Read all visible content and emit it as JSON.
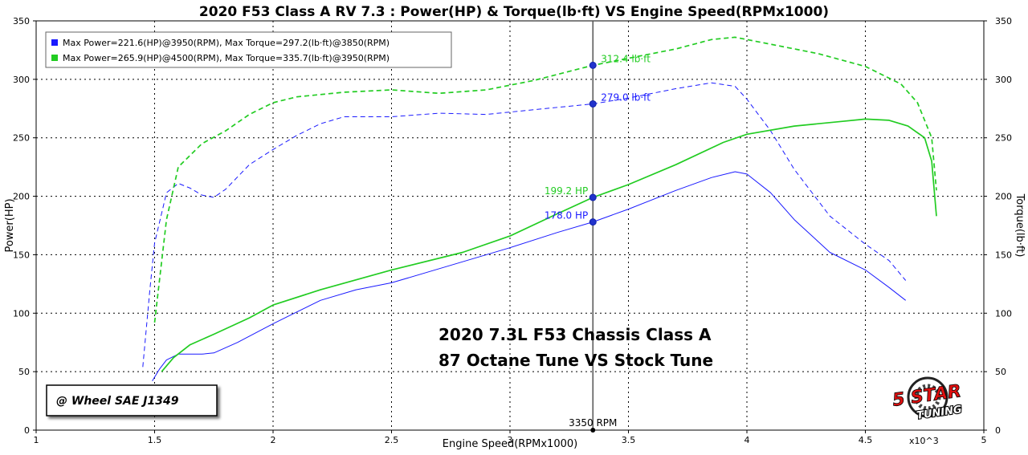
{
  "chart_data": {
    "type": "line",
    "title": "2020 F53 Class A RV 7.3 : Power(HP) & Torque(lb·ft) VS Engine Speed(RPMx1000)",
    "xlabel": "Engine Speed(RPMx1000)",
    "ylabel_left": "Power(HP)",
    "ylabel_right": "Torque(lb·ft)",
    "x_multiplier_label": "x10^3",
    "xlim": [
      1,
      5
    ],
    "ylim": [
      0,
      350
    ],
    "x_ticks": [
      "1",
      "1.5",
      "2",
      "2.5",
      "3",
      "3.5",
      "4",
      "4.5",
      "5"
    ],
    "y_ticks": [
      "0",
      "50",
      "100",
      "150",
      "200",
      "250",
      "300",
      "350"
    ],
    "grid": true,
    "legend_position": "top-left",
    "legend": [
      {
        "text": "Max Power=221.6(HP)@3950(RPM), Max Torque=297.2(lb·ft)@3850(RPM)",
        "color": "#1a1aff"
      },
      {
        "text": "Max Power=265.9(HP)@4500(RPM), Max Torque=335.7(lb·ft)@3950(RPM)",
        "color": "#22cc22"
      }
    ],
    "series": [
      {
        "metric": "power",
        "color": "#1a1aff",
        "style": "solid",
        "width": 1,
        "x": [
          1.49,
          1.52,
          1.55,
          1.6,
          1.7,
          1.75,
          1.85,
          2.0,
          2.1,
          2.2,
          2.35,
          2.5,
          2.65,
          2.8,
          3.0,
          3.2,
          3.35,
          3.5,
          3.7,
          3.85,
          3.95,
          4.0,
          4.1,
          4.2,
          4.35,
          4.5,
          4.6,
          4.67
        ],
        "y": [
          42,
          52,
          60,
          65,
          65,
          66,
          75,
          91,
          101,
          111,
          120,
          126,
          135,
          144,
          156,
          169,
          178,
          189,
          205,
          216,
          221,
          219,
          203,
          180,
          152,
          137,
          122,
          111
        ]
      },
      {
        "metric": "torque",
        "color": "#1a1aff",
        "style": "dashed",
        "width": 1,
        "x": [
          1.45,
          1.48,
          1.5,
          1.55,
          1.6,
          1.65,
          1.7,
          1.75,
          1.8,
          1.9,
          2.0,
          2.1,
          2.2,
          2.3,
          2.5,
          2.7,
          2.9,
          3.1,
          3.35,
          3.5,
          3.7,
          3.85,
          3.95,
          4.0,
          4.1,
          4.2,
          4.35,
          4.5,
          4.6,
          4.67
        ],
        "y": [
          54,
          120,
          160,
          203,
          211,
          207,
          201,
          199,
          206,
          227,
          240,
          252,
          262,
          268,
          268,
          271,
          270,
          274,
          279,
          284,
          292,
          297,
          294,
          283,
          256,
          223,
          183,
          159,
          145,
          128
        ]
      },
      {
        "metric": "power",
        "color": "#22cc22",
        "style": "solid",
        "width": 1.7,
        "x": [
          1.53,
          1.58,
          1.65,
          1.75,
          1.9,
          2.0,
          2.2,
          2.5,
          2.8,
          3.0,
          3.2,
          3.35,
          3.5,
          3.7,
          3.9,
          4.0,
          4.2,
          4.4,
          4.5,
          4.6,
          4.68,
          4.75,
          4.78,
          4.8
        ],
        "y": [
          50,
          62,
          73,
          82,
          96,
          107,
          120,
          137,
          152,
          166,
          185,
          199,
          210,
          227,
          246,
          253,
          260,
          264,
          266,
          265,
          260,
          250,
          230,
          183
        ]
      },
      {
        "metric": "torque",
        "color": "#22cc22",
        "style": "dashed",
        "width": 1.7,
        "x": [
          1.5,
          1.55,
          1.6,
          1.7,
          1.8,
          1.9,
          2.0,
          2.1,
          2.3,
          2.5,
          2.7,
          2.9,
          3.1,
          3.35,
          3.5,
          3.7,
          3.85,
          3.95,
          4.1,
          4.3,
          4.5,
          4.65,
          4.72,
          4.78,
          4.8
        ],
        "y": [
          92,
          180,
          225,
          245,
          256,
          270,
          280,
          285,
          289,
          291,
          288,
          291,
          299,
          312,
          318,
          326,
          334,
          336,
          330,
          322,
          311,
          296,
          280,
          250,
          205
        ]
      }
    ],
    "cursor": {
      "x": 3.35,
      "label": "3350 RPM",
      "points": [
        {
          "y": 312,
          "label": "312.4 lb·ft",
          "color": "#22cc22"
        },
        {
          "y": 279,
          "label": "279.0 lb·ft",
          "color": "#1a1aff"
        },
        {
          "y": 199,
          "label": "199.2 HP",
          "color": "#22cc22"
        },
        {
          "y": 178,
          "label": "178.0 HP",
          "color": "#1a1aff"
        }
      ]
    },
    "annotations": {
      "caption_line1": "2020 7.3L F53 Chassis Class A",
      "caption_line2": "87 Octane Tune VS Stock Tune",
      "wheel_note": "@ Wheel SAE J1349",
      "logo_text_top": "5 STAR",
      "logo_text_bottom": "TUNING"
    }
  }
}
